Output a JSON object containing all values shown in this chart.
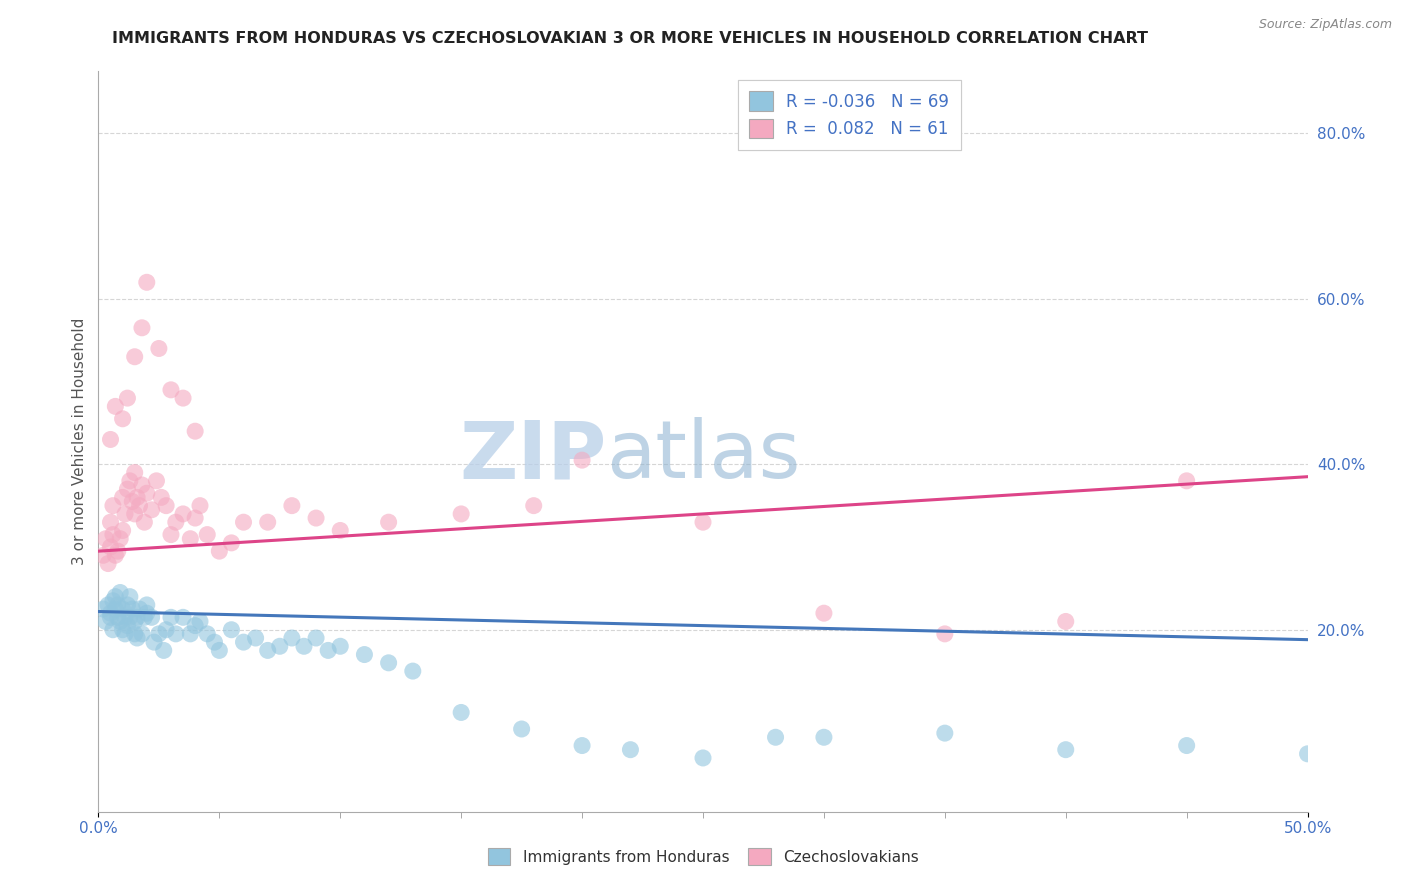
{
  "title": "IMMIGRANTS FROM HONDURAS VS CZECHOSLOVAKIAN 3 OR MORE VEHICLES IN HOUSEHOLD CORRELATION CHART",
  "source": "Source: ZipAtlas.com",
  "ylabel": "3 or more Vehicles in Household",
  "ylabel_ticks": [
    "20.0%",
    "40.0%",
    "60.0%",
    "80.0%"
  ],
  "ylabel_tick_vals": [
    0.2,
    0.4,
    0.6,
    0.8
  ],
  "xlim": [
    0.0,
    0.5
  ],
  "ylim": [
    -0.02,
    0.875
  ],
  "legend_label1": "Immigrants from Honduras",
  "legend_label2": "Czechoslovakians",
  "R1": -0.036,
  "N1": 69,
  "R2": 0.082,
  "N2": 61,
  "color1": "#92c5de",
  "color2": "#f4a9c0",
  "line_color1": "#4477bb",
  "line_color2": "#dd4488",
  "watermark_zip": "ZIP",
  "watermark_atlas": "atlas",
  "title_color": "#222222",
  "axis_label_color": "#555555",
  "tick_color": "#4472c4",
  "grid_color": "#cccccc",
  "background_color": "#ffffff",
  "line1_start_y": 0.222,
  "line1_end_y": 0.188,
  "line2_start_y": 0.295,
  "line2_end_y": 0.385,
  "scatter1_x": [
    0.002,
    0.003,
    0.004,
    0.005,
    0.005,
    0.006,
    0.006,
    0.007,
    0.007,
    0.008,
    0.008,
    0.009,
    0.009,
    0.01,
    0.01,
    0.011,
    0.011,
    0.012,
    0.012,
    0.013,
    0.013,
    0.014,
    0.015,
    0.015,
    0.016,
    0.016,
    0.017,
    0.018,
    0.019,
    0.02,
    0.02,
    0.022,
    0.023,
    0.025,
    0.027,
    0.028,
    0.03,
    0.032,
    0.035,
    0.038,
    0.04,
    0.042,
    0.045,
    0.048,
    0.05,
    0.055,
    0.06,
    0.065,
    0.07,
    0.075,
    0.08,
    0.085,
    0.09,
    0.095,
    0.1,
    0.11,
    0.12,
    0.13,
    0.15,
    0.175,
    0.2,
    0.22,
    0.25,
    0.28,
    0.3,
    0.35,
    0.4,
    0.45,
    0.5
  ],
  "scatter1_y": [
    0.225,
    0.21,
    0.23,
    0.22,
    0.215,
    0.235,
    0.2,
    0.225,
    0.24,
    0.215,
    0.23,
    0.21,
    0.245,
    0.2,
    0.225,
    0.215,
    0.195,
    0.23,
    0.205,
    0.215,
    0.24,
    0.225,
    0.195,
    0.21,
    0.215,
    0.19,
    0.225,
    0.195,
    0.215,
    0.23,
    0.22,
    0.215,
    0.185,
    0.195,
    0.175,
    0.2,
    0.215,
    0.195,
    0.215,
    0.195,
    0.205,
    0.21,
    0.195,
    0.185,
    0.175,
    0.2,
    0.185,
    0.19,
    0.175,
    0.18,
    0.19,
    0.18,
    0.19,
    0.175,
    0.18,
    0.17,
    0.16,
    0.15,
    0.1,
    0.08,
    0.06,
    0.055,
    0.045,
    0.07,
    0.07,
    0.075,
    0.055,
    0.06,
    0.05
  ],
  "scatter2_x": [
    0.002,
    0.003,
    0.004,
    0.005,
    0.005,
    0.006,
    0.006,
    0.007,
    0.008,
    0.009,
    0.01,
    0.01,
    0.011,
    0.012,
    0.013,
    0.014,
    0.015,
    0.015,
    0.016,
    0.017,
    0.018,
    0.019,
    0.02,
    0.022,
    0.024,
    0.026,
    0.028,
    0.03,
    0.032,
    0.035,
    0.038,
    0.04,
    0.042,
    0.045,
    0.05,
    0.055,
    0.06,
    0.07,
    0.08,
    0.09,
    0.1,
    0.12,
    0.15,
    0.18,
    0.2,
    0.25,
    0.3,
    0.35,
    0.4,
    0.45,
    0.005,
    0.007,
    0.01,
    0.012,
    0.015,
    0.018,
    0.02,
    0.025,
    0.03,
    0.035,
    0.04
  ],
  "scatter2_y": [
    0.29,
    0.31,
    0.28,
    0.3,
    0.33,
    0.35,
    0.315,
    0.29,
    0.295,
    0.31,
    0.32,
    0.36,
    0.34,
    0.37,
    0.38,
    0.355,
    0.34,
    0.39,
    0.36,
    0.35,
    0.375,
    0.33,
    0.365,
    0.345,
    0.38,
    0.36,
    0.35,
    0.315,
    0.33,
    0.34,
    0.31,
    0.335,
    0.35,
    0.315,
    0.295,
    0.305,
    0.33,
    0.33,
    0.35,
    0.335,
    0.32,
    0.33,
    0.34,
    0.35,
    0.405,
    0.33,
    0.22,
    0.195,
    0.21,
    0.38,
    0.43,
    0.47,
    0.455,
    0.48,
    0.53,
    0.565,
    0.62,
    0.54,
    0.49,
    0.48,
    0.44
  ]
}
